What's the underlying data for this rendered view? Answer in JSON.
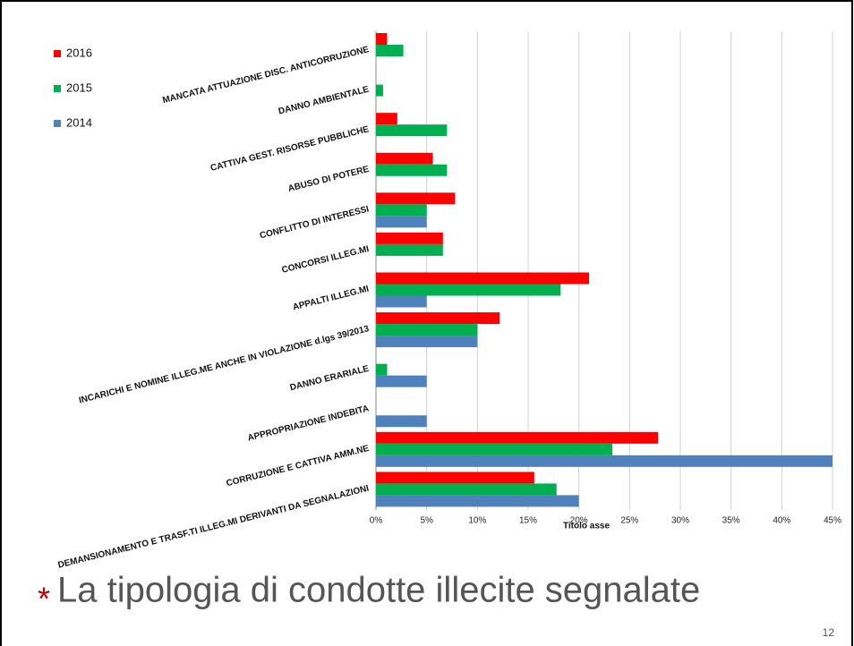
{
  "chart_data": {
    "type": "hbar",
    "title": "La tipologia di condotte illecite segnalate",
    "bullet": "*",
    "page_number": "12",
    "x_label": "Titolo asse",
    "categories": [
      "MANCATA ATTUAZIONE DISC. ANTICORRUZIONE",
      "DANNO AMBIENTALE",
      "CATTIVA GEST. RISORSE PUBBLICHE",
      "ABUSO DI POTERE",
      "CONFLITTO DI INTERESSI",
      "CONCORSI ILLEG.MI",
      "APPALTI ILLEG.MI",
      "INCARICHI E NOMINE ILLEG.ME ANCHE IN VIOLAZIONE d.lgs 39/2013",
      "DANNO ERARIALE",
      "APPROPRIAZIONE INDEBITA",
      "CORRUZIONE E CATTIVA AMM.NE",
      "DEMANSIONAMENTO E TRASF.TI ILLEG.MI DERIVANTI DA SEGNALAZIONI"
    ],
    "series": [
      {
        "name": "2016",
        "color": "#ff0000",
        "values": [
          1.1,
          0,
          2.1,
          5.6,
          7.8,
          6.6,
          21.0,
          12.2,
          0,
          0,
          27.8,
          15.6
        ]
      },
      {
        "name": "2015",
        "color": "#00b050",
        "values": [
          2.7,
          0.7,
          7.0,
          7.0,
          5.0,
          6.6,
          18.2,
          10.0,
          1.1,
          0,
          23.3,
          17.8
        ]
      },
      {
        "name": "2014",
        "color": "#4f81bd",
        "values": [
          0,
          0,
          0,
          0,
          5.0,
          0,
          5.0,
          10.0,
          5.0,
          5.0,
          45,
          20
        ]
      }
    ],
    "xlim": [
      0,
      45
    ],
    "xticks": [
      {
        "value": 0,
        "label": "0%"
      },
      {
        "value": 5,
        "label": "5%"
      },
      {
        "value": 10,
        "label": "10%"
      },
      {
        "value": 15,
        "label": "15%"
      },
      {
        "value": 20,
        "label": "20%"
      },
      {
        "value": 25,
        "label": "25%"
      },
      {
        "value": 30,
        "label": "30%"
      },
      {
        "value": 35,
        "label": "35%"
      },
      {
        "value": 40,
        "label": "40%"
      },
      {
        "value": 45,
        "label": "45%"
      }
    ],
    "grid": true,
    "legend": "top-left"
  }
}
